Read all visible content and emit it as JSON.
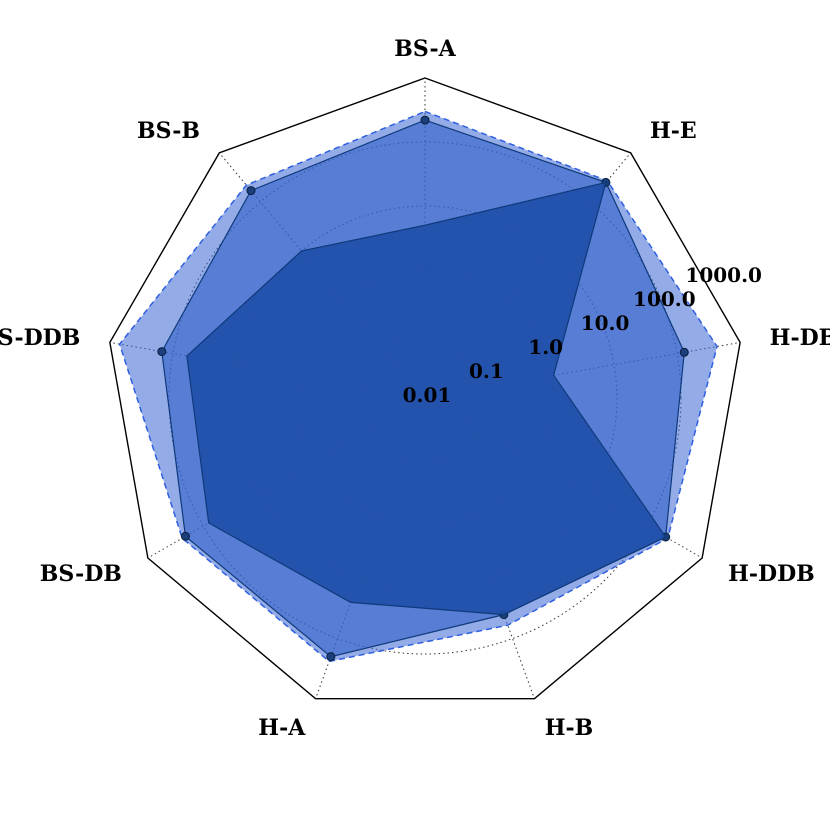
{
  "chart_data": {
    "type": "radar",
    "scale": "log",
    "rlim": [
      0.01,
      1000.0
    ],
    "grid": true,
    "categories": [
      "BS-A",
      "H-E",
      "H-DB",
      "H-DDB",
      "H-B",
      "H-A",
      "BS-DB",
      "BS-DDB",
      "BS-B"
    ],
    "r_ticks": [
      {
        "value": 0.01,
        "label": "0.01"
      },
      {
        "value": 0.1,
        "label": "0.1"
      },
      {
        "value": 1.0,
        "label": "1.0"
      },
      {
        "value": 10.0,
        "label": "10.0"
      },
      {
        "value": 100.0,
        "label": "100.0"
      },
      {
        "value": 1000.0,
        "label": "1000.0"
      }
    ],
    "series": [
      {
        "values": [
          5,
          250,
          1.1,
          220,
          40,
          25,
          80,
          60,
          10
        ],
        "color": "#1f4fa8",
        "opacity": 0.9
      },
      {
        "values": [
          220,
          250,
          130,
          220,
          40,
          200,
          210,
          150,
          170
        ],
        "color": "#2e5ec8",
        "opacity": 0.6,
        "markers": true
      },
      {
        "values": [
          300,
          270,
          430,
          240,
          60,
          240,
          240,
          700,
          220
        ],
        "color": "#3a67d6",
        "opacity": 0.55,
        "dashed": true
      }
    ]
  }
}
